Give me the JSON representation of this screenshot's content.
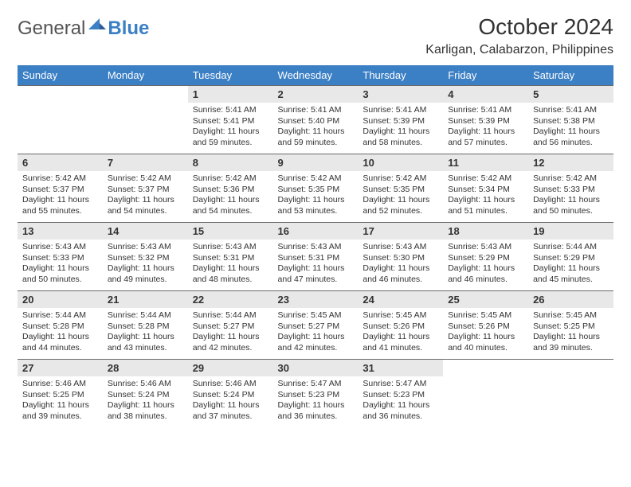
{
  "logo": {
    "text1": "General",
    "text2": "Blue"
  },
  "title": "October 2024",
  "location": "Karligan, Calabarzon, Philippines",
  "colors": {
    "header_bg": "#3b7fc4",
    "header_text": "#ffffff",
    "daynum_bg": "#e8e8e8",
    "text": "#333333",
    "border": "#6a6a6a"
  },
  "day_headers": [
    "Sunday",
    "Monday",
    "Tuesday",
    "Wednesday",
    "Thursday",
    "Friday",
    "Saturday"
  ],
  "weeks": [
    [
      null,
      null,
      {
        "n": "1",
        "sunrise": "5:41 AM",
        "sunset": "5:41 PM",
        "day": "11 hours and 59 minutes."
      },
      {
        "n": "2",
        "sunrise": "5:41 AM",
        "sunset": "5:40 PM",
        "day": "11 hours and 59 minutes."
      },
      {
        "n": "3",
        "sunrise": "5:41 AM",
        "sunset": "5:39 PM",
        "day": "11 hours and 58 minutes."
      },
      {
        "n": "4",
        "sunrise": "5:41 AM",
        "sunset": "5:39 PM",
        "day": "11 hours and 57 minutes."
      },
      {
        "n": "5",
        "sunrise": "5:41 AM",
        "sunset": "5:38 PM",
        "day": "11 hours and 56 minutes."
      }
    ],
    [
      {
        "n": "6",
        "sunrise": "5:42 AM",
        "sunset": "5:37 PM",
        "day": "11 hours and 55 minutes."
      },
      {
        "n": "7",
        "sunrise": "5:42 AM",
        "sunset": "5:37 PM",
        "day": "11 hours and 54 minutes."
      },
      {
        "n": "8",
        "sunrise": "5:42 AM",
        "sunset": "5:36 PM",
        "day": "11 hours and 54 minutes."
      },
      {
        "n": "9",
        "sunrise": "5:42 AM",
        "sunset": "5:35 PM",
        "day": "11 hours and 53 minutes."
      },
      {
        "n": "10",
        "sunrise": "5:42 AM",
        "sunset": "5:35 PM",
        "day": "11 hours and 52 minutes."
      },
      {
        "n": "11",
        "sunrise": "5:42 AM",
        "sunset": "5:34 PM",
        "day": "11 hours and 51 minutes."
      },
      {
        "n": "12",
        "sunrise": "5:42 AM",
        "sunset": "5:33 PM",
        "day": "11 hours and 50 minutes."
      }
    ],
    [
      {
        "n": "13",
        "sunrise": "5:43 AM",
        "sunset": "5:33 PM",
        "day": "11 hours and 50 minutes."
      },
      {
        "n": "14",
        "sunrise": "5:43 AM",
        "sunset": "5:32 PM",
        "day": "11 hours and 49 minutes."
      },
      {
        "n": "15",
        "sunrise": "5:43 AM",
        "sunset": "5:31 PM",
        "day": "11 hours and 48 minutes."
      },
      {
        "n": "16",
        "sunrise": "5:43 AM",
        "sunset": "5:31 PM",
        "day": "11 hours and 47 minutes."
      },
      {
        "n": "17",
        "sunrise": "5:43 AM",
        "sunset": "5:30 PM",
        "day": "11 hours and 46 minutes."
      },
      {
        "n": "18",
        "sunrise": "5:43 AM",
        "sunset": "5:29 PM",
        "day": "11 hours and 46 minutes."
      },
      {
        "n": "19",
        "sunrise": "5:44 AM",
        "sunset": "5:29 PM",
        "day": "11 hours and 45 minutes."
      }
    ],
    [
      {
        "n": "20",
        "sunrise": "5:44 AM",
        "sunset": "5:28 PM",
        "day": "11 hours and 44 minutes."
      },
      {
        "n": "21",
        "sunrise": "5:44 AM",
        "sunset": "5:28 PM",
        "day": "11 hours and 43 minutes."
      },
      {
        "n": "22",
        "sunrise": "5:44 AM",
        "sunset": "5:27 PM",
        "day": "11 hours and 42 minutes."
      },
      {
        "n": "23",
        "sunrise": "5:45 AM",
        "sunset": "5:27 PM",
        "day": "11 hours and 42 minutes."
      },
      {
        "n": "24",
        "sunrise": "5:45 AM",
        "sunset": "5:26 PM",
        "day": "11 hours and 41 minutes."
      },
      {
        "n": "25",
        "sunrise": "5:45 AM",
        "sunset": "5:26 PM",
        "day": "11 hours and 40 minutes."
      },
      {
        "n": "26",
        "sunrise": "5:45 AM",
        "sunset": "5:25 PM",
        "day": "11 hours and 39 minutes."
      }
    ],
    [
      {
        "n": "27",
        "sunrise": "5:46 AM",
        "sunset": "5:25 PM",
        "day": "11 hours and 39 minutes."
      },
      {
        "n": "28",
        "sunrise": "5:46 AM",
        "sunset": "5:24 PM",
        "day": "11 hours and 38 minutes."
      },
      {
        "n": "29",
        "sunrise": "5:46 AM",
        "sunset": "5:24 PM",
        "day": "11 hours and 37 minutes."
      },
      {
        "n": "30",
        "sunrise": "5:47 AM",
        "sunset": "5:23 PM",
        "day": "11 hours and 36 minutes."
      },
      {
        "n": "31",
        "sunrise": "5:47 AM",
        "sunset": "5:23 PM",
        "day": "11 hours and 36 minutes."
      },
      null,
      null
    ]
  ],
  "labels": {
    "sunrise": "Sunrise:",
    "sunset": "Sunset:",
    "daylight": "Daylight:"
  }
}
